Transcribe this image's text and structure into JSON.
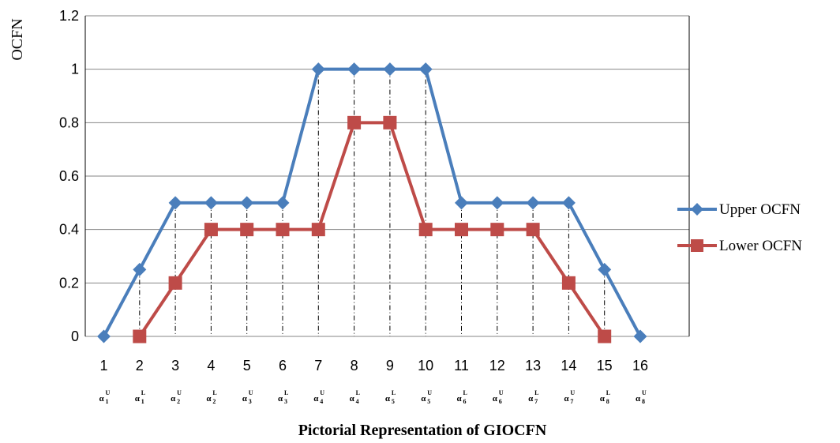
{
  "chart_data": {
    "type": "line",
    "xlabel": "Pictorial Representation of GIOCFN",
    "ylabel": "OCFN",
    "x": [
      1,
      2,
      3,
      4,
      5,
      6,
      7,
      8,
      9,
      10,
      11,
      12,
      13,
      14,
      15,
      16
    ],
    "ylim": [
      0,
      1.2
    ],
    "yticks": [
      0,
      0.2,
      0.4,
      0.6,
      0.8,
      1,
      1.2
    ],
    "grid": true,
    "legend": "right",
    "series": [
      {
        "name": "Upper OCFN",
        "color": "#4A7EBB",
        "marker": "diamond",
        "x": [
          1,
          2,
          3,
          4,
          5,
          6,
          7,
          8,
          9,
          10,
          11,
          12,
          13,
          14,
          15,
          16
        ],
        "values": [
          0,
          0.25,
          0.5,
          0.5,
          0.5,
          0.5,
          1,
          1,
          1,
          1,
          0.5,
          0.5,
          0.5,
          0.5,
          0.25,
          0
        ]
      },
      {
        "name": "Lower OCFN",
        "color": "#BE4B48",
        "marker": "square",
        "x": [
          2,
          3,
          4,
          5,
          6,
          7,
          8,
          9,
          10,
          11,
          12,
          13,
          14,
          15
        ],
        "values": [
          0,
          0.2,
          0.4,
          0.4,
          0.4,
          0.4,
          0.8,
          0.8,
          0.4,
          0.4,
          0.4,
          0.4,
          0.2,
          0
        ]
      }
    ],
    "drop_lines_at": [
      2,
      3,
      4,
      5,
      6,
      7,
      8,
      9,
      10,
      11,
      12,
      13,
      14,
      15
    ],
    "point_labels": [
      {
        "x": 1,
        "base": "α",
        "sub": "1",
        "sup": "U"
      },
      {
        "x": 2,
        "base": "α",
        "sub": "1",
        "sup": "L"
      },
      {
        "x": 3,
        "base": "α",
        "sub": "2",
        "sup": "U"
      },
      {
        "x": 4,
        "base": "α",
        "sub": "2",
        "sup": "L"
      },
      {
        "x": 5,
        "base": "α",
        "sub": "3",
        "sup": "U"
      },
      {
        "x": 6,
        "base": "α",
        "sub": "3",
        "sup": "L"
      },
      {
        "x": 7,
        "base": "α",
        "sub": "4",
        "sup": "U"
      },
      {
        "x": 8,
        "base": "α",
        "sub": "4",
        "sup": "L"
      },
      {
        "x": 9,
        "base": "α",
        "sub": "5",
        "sup": "L"
      },
      {
        "x": 10,
        "base": "α",
        "sub": "5",
        "sup": "U"
      },
      {
        "x": 11,
        "base": "α",
        "sub": "6",
        "sup": "L"
      },
      {
        "x": 12,
        "base": "α",
        "sub": "6",
        "sup": "U"
      },
      {
        "x": 13,
        "base": "α",
        "sub": "7",
        "sup": "L"
      },
      {
        "x": 14,
        "base": "α",
        "sub": "7",
        "sup": "U"
      },
      {
        "x": 15,
        "base": "α",
        "sub": "8",
        "sup": "L"
      },
      {
        "x": 16,
        "base": "α",
        "sub": "8",
        "sup": "U"
      }
    ]
  }
}
